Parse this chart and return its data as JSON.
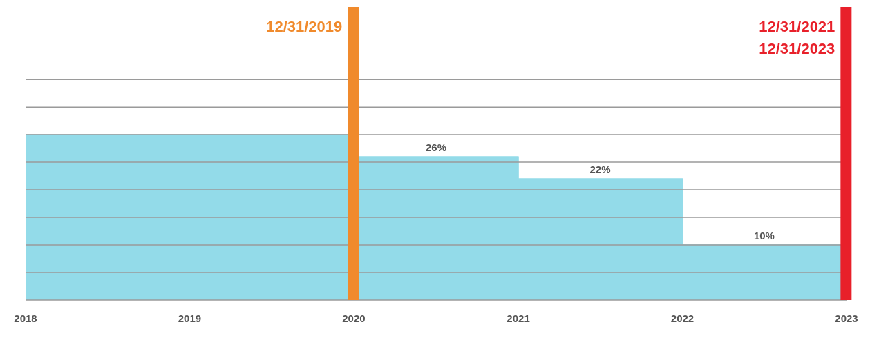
{
  "chart_data": {
    "type": "area",
    "x": [
      "2018",
      "2020",
      "2020",
      "2020-07-02",
      "2021",
      "2021",
      "2021-07-02",
      "2022",
      "2022",
      "2022-07-02",
      "2023"
    ],
    "series": [
      {
        "color": "#93dbe9",
        "values": [
          30,
          30,
          26,
          26,
          26,
          22,
          22,
          22,
          10,
          10,
          10
        ],
        "value_labels": [
          null,
          null,
          null,
          "26%",
          null,
          null,
          "22%",
          null,
          null,
          "10%",
          null
        ]
      }
    ],
    "xlim": [
      "2018",
      "2023"
    ],
    "xticks": [
      "2018",
      "2019",
      "2020",
      "2021",
      "2022",
      "2023"
    ],
    "grid": "y",
    "tick_labels": "x",
    "ref_lines": [
      {
        "axis": "x",
        "value": "2019-12-31",
        "label": "12/31/2019",
        "color": "#f08a2c"
      },
      {
        "axis": "x",
        "value": "2022-12-31",
        "label": "12/31/2021\n12/31/2023",
        "color": "#e8202a"
      }
    ]
  }
}
